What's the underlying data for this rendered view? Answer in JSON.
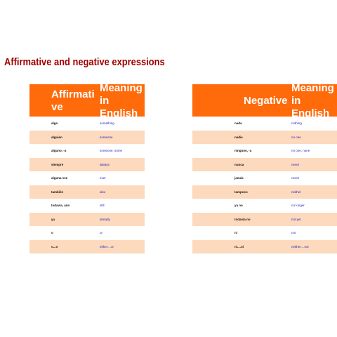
{
  "title": "Affirmative and negative expressions",
  "affirmative_table": {
    "headers": [
      "Affirmative",
      "Meaning in English"
    ],
    "rows": [
      [
        "algo",
        "something"
      ],
      [
        "alguien",
        "someone"
      ],
      [
        "alguno, -a",
        "someone, some"
      ],
      [
        "siempre",
        "always"
      ],
      [
        "alguna vez",
        "ever"
      ],
      [
        "también",
        "also"
      ],
      [
        "todavía, aún",
        "still"
      ],
      [
        "ya",
        "already"
      ],
      [
        "o",
        "or"
      ],
      [
        "o...o",
        "either....or"
      ]
    ]
  },
  "negative_table": {
    "headers": [
      "Negative",
      "Meaning in English"
    ],
    "rows": [
      [
        "nada",
        "nothing"
      ],
      [
        "nadie",
        "no one"
      ],
      [
        "ninguno, -a",
        "no one, none"
      ],
      [
        "nunca",
        "never"
      ],
      [
        "jamás",
        "never"
      ],
      [
        "tampoco",
        "neither"
      ],
      [
        "ya no",
        "no longer"
      ],
      [
        "todavía no",
        "not yet"
      ],
      [
        "ni",
        "nor"
      ],
      [
        "ni....ni",
        "neither....nor"
      ]
    ]
  },
  "colors": {
    "title": "#a00000",
    "header_bg": "#ff6a0a",
    "row_alt_bg": "#fdd9bd",
    "meaning_text": "#2323c0"
  }
}
